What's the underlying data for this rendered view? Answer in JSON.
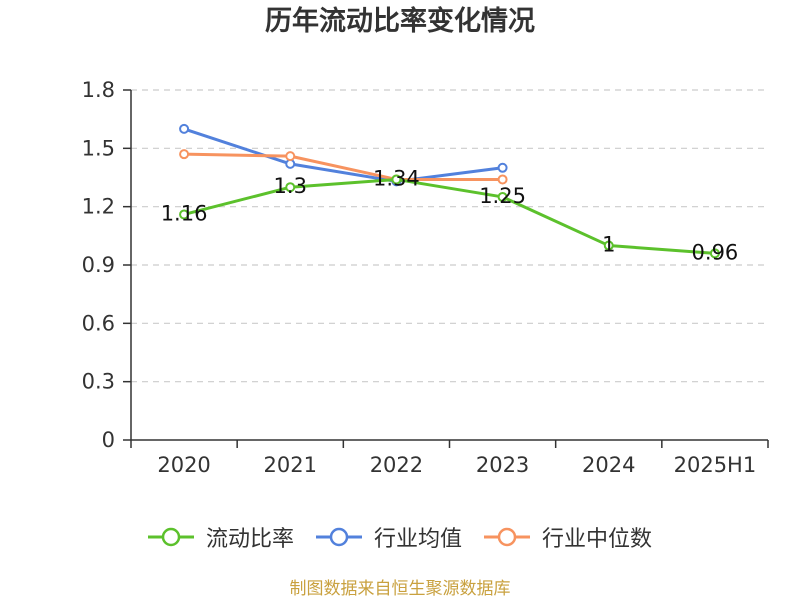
{
  "chart_data": {
    "type": "line",
    "title": "历年流动比率变化情况",
    "categories": [
      "2020",
      "2021",
      "2022",
      "2023",
      "2024",
      "2025H1"
    ],
    "ylim": [
      0,
      1.8
    ],
    "yticks": [
      0,
      0.3,
      0.6,
      0.9,
      1.2,
      1.5,
      1.8
    ],
    "grid": true,
    "legend": "bottom",
    "series": [
      {
        "name": "流动比率",
        "color": "#5cc12c",
        "values": [
          1.16,
          1.3,
          1.34,
          1.25,
          1,
          0.96
        ],
        "data_labels": true
      },
      {
        "name": "行业均值",
        "color": "#5281dc",
        "values": [
          1.6,
          1.42,
          1.33,
          1.4,
          null,
          null
        ],
        "data_labels": false
      },
      {
        "name": "行业中位数",
        "color": "#f7935f",
        "values": [
          1.47,
          1.46,
          1.34,
          1.34,
          null,
          null
        ],
        "data_labels": false
      }
    ]
  },
  "footer": {
    "source": "制图数据来自恒生聚源数据库"
  }
}
